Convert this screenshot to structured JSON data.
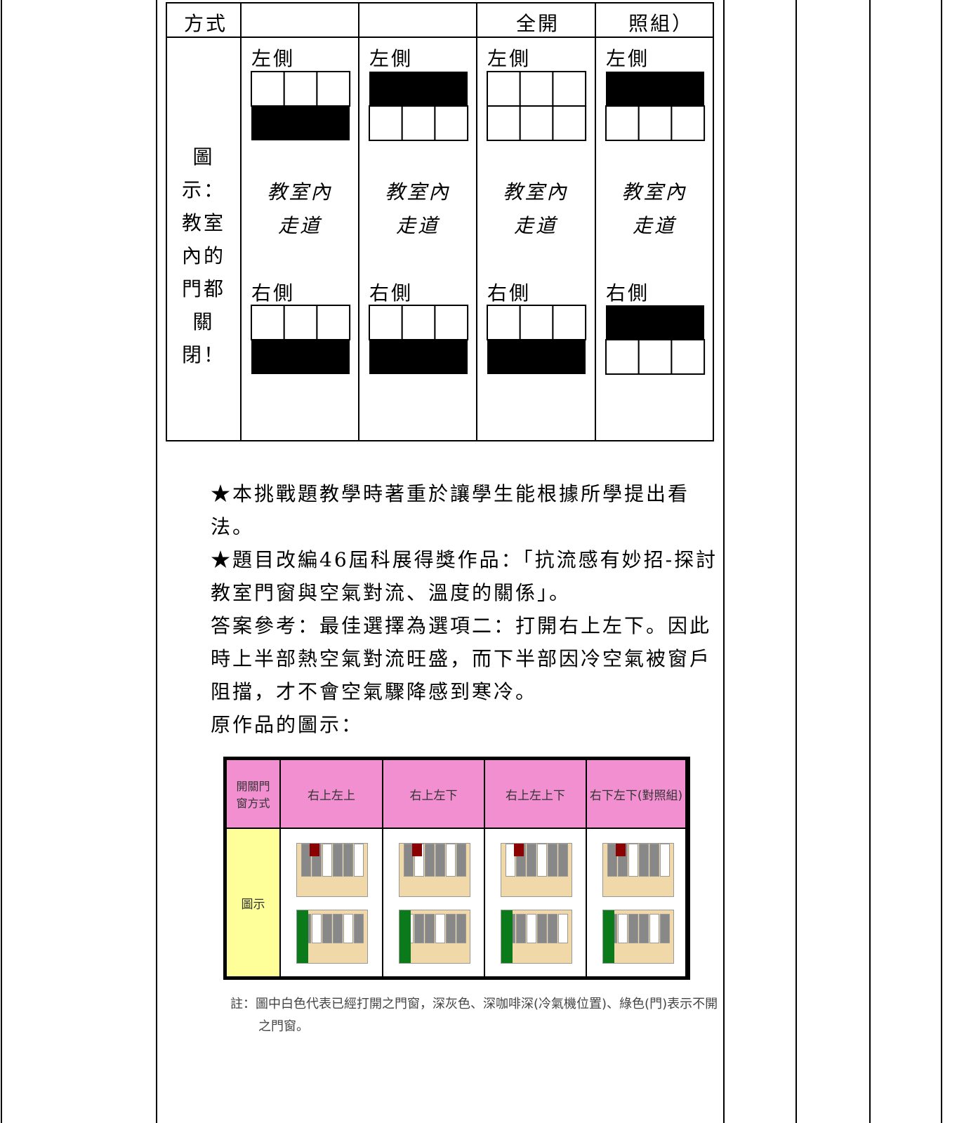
{
  "table": {
    "header_fragments": [
      "方式",
      "全開",
      "照組）"
    ],
    "row_label": [
      "圖",
      "示：",
      "教室",
      "內的",
      "門都",
      "關",
      "閉！"
    ],
    "cells": [
      {
        "left": "左側",
        "room": [
          "教室內",
          "走道"
        ],
        "right": "右側"
      },
      {
        "left": "左側",
        "room": [
          "教室內",
          "走道"
        ],
        "right": "右側"
      },
      {
        "left": "左側",
        "room": [
          "教室內",
          "走道"
        ],
        "right": "右側"
      },
      {
        "left": "左側",
        "room": [
          "教室內",
          "走道"
        ],
        "right": "右側"
      }
    ]
  },
  "notes": [
    "★本挑戰題教學時著重於讓學生能根據所學提出看法。",
    "★題目改編46屆科展得獎作品：「抗流感有妙招-探討教室門窗與空氣對流、溫度的關係」。",
    "答案參考：最佳選擇為選項二：打開右上左下。因此時上半部熱空氣對流旺盛，而下半部因冷空氣被窗戶阻擋，才不會空氣驟降感到寒冷。",
    "原作品的圖示："
  ],
  "figure": {
    "header": [
      "開關門窗方式",
      "右上左上",
      "右上左下",
      "右上左上下",
      "右下左下(對照組)"
    ],
    "row_label": "圖示",
    "note": "註：圖中白色代表已經打開之門窗，深灰色、深咖啡深(冷氣機位置)、綠色(門)表示不開之門窗。"
  }
}
